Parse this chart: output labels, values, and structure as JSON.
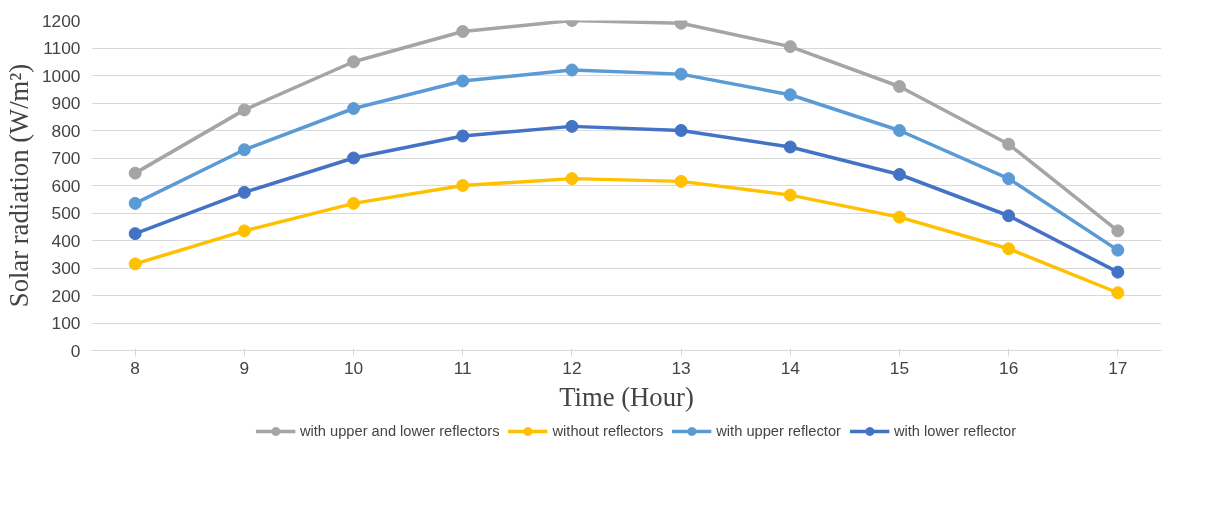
{
  "chart_data": {
    "type": "line",
    "xlabel": "Time (Hour)",
    "ylabel": "Solar radiation (W/m²)",
    "x": [
      8,
      9,
      10,
      11,
      12,
      13,
      14,
      15,
      16,
      17
    ],
    "xlim": [
      7.6,
      17.4
    ],
    "xticks": [
      8,
      9,
      10,
      11,
      12,
      13,
      14,
      15,
      16,
      17
    ],
    "ylim": [
      0,
      1200
    ],
    "yticks": [
      0,
      100,
      200,
      300,
      400,
      500,
      600,
      700,
      800,
      900,
      1000,
      1100,
      1200
    ],
    "grid": "y",
    "legend": "bottom",
    "marker": "circle",
    "line_style": "solid",
    "series": [
      {
        "name": "with upper and lower reflectors",
        "color": "#a5a5a5",
        "values": [
          645,
          875,
          1050,
          1160,
          1200,
          1190,
          1105,
          960,
          750,
          435
        ]
      },
      {
        "name": "without reflectors",
        "color": "#ffc000",
        "values": [
          315,
          435,
          535,
          600,
          625,
          615,
          565,
          485,
          370,
          210
        ]
      },
      {
        "name": "with upper reflector",
        "color": "#5b9bd5",
        "values": [
          535,
          730,
          880,
          980,
          1020,
          1005,
          930,
          800,
          625,
          365
        ]
      },
      {
        "name": "with lower reflector",
        "color": "#4472c4",
        "values": [
          425,
          575,
          700,
          780,
          815,
          800,
          740,
          640,
          490,
          285
        ]
      }
    ]
  }
}
